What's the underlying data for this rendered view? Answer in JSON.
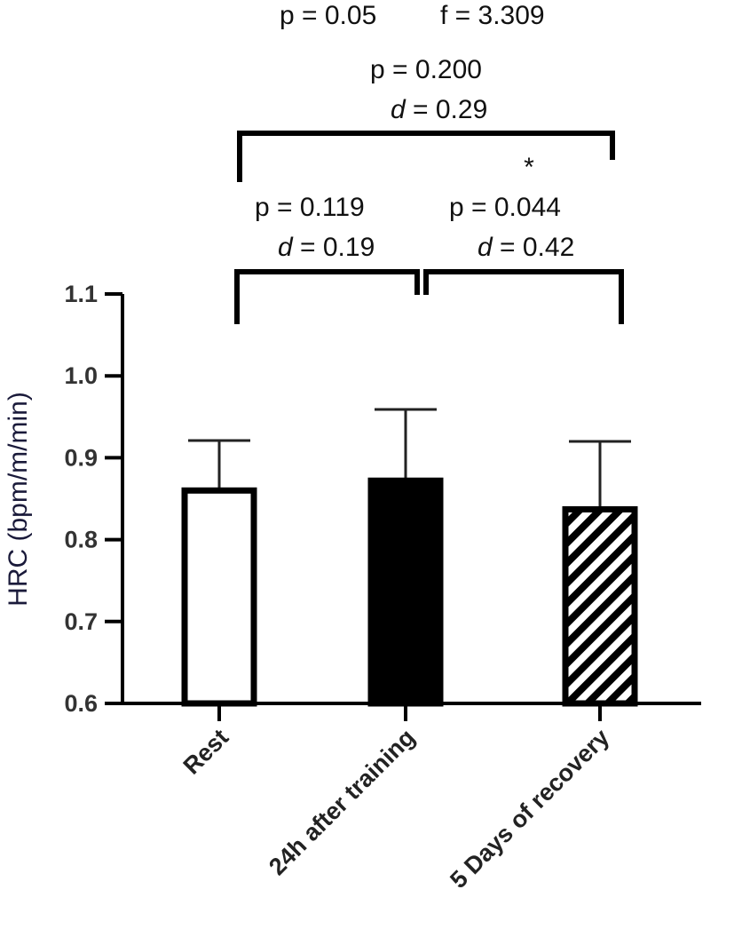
{
  "chart_data": {
    "type": "bar",
    "title": "",
    "xlabel": "",
    "ylabel": "HRC (bpm/m/min)",
    "ylim": [
      0.6,
      1.1
    ],
    "yticks": [
      "0.6",
      "0.7",
      "0.8",
      "0.9",
      "1.0",
      "1.1"
    ],
    "categories": [
      "Rest",
      "24h after training",
      "5 Days of recovery"
    ],
    "values": [
      0.86,
      0.872,
      0.837
    ],
    "error_upper": [
      0.921,
      0.959,
      0.92
    ],
    "fills": [
      "white",
      "black",
      "hatched"
    ],
    "annotations": {
      "overall": {
        "p": "p = 0.05",
        "f": "f = 3.309"
      },
      "rest_vs_5days": {
        "p": "p = 0.200",
        "d_label": "d",
        "d": " = 0.29"
      },
      "rest_vs_24h": {
        "p": "p = 0.119",
        "d_label": "d",
        "d": " = 0.19"
      },
      "24h_vs_5days": {
        "p": "p = 0.044",
        "d_label": "d",
        "d": " = 0.42",
        "star": "*"
      }
    }
  }
}
